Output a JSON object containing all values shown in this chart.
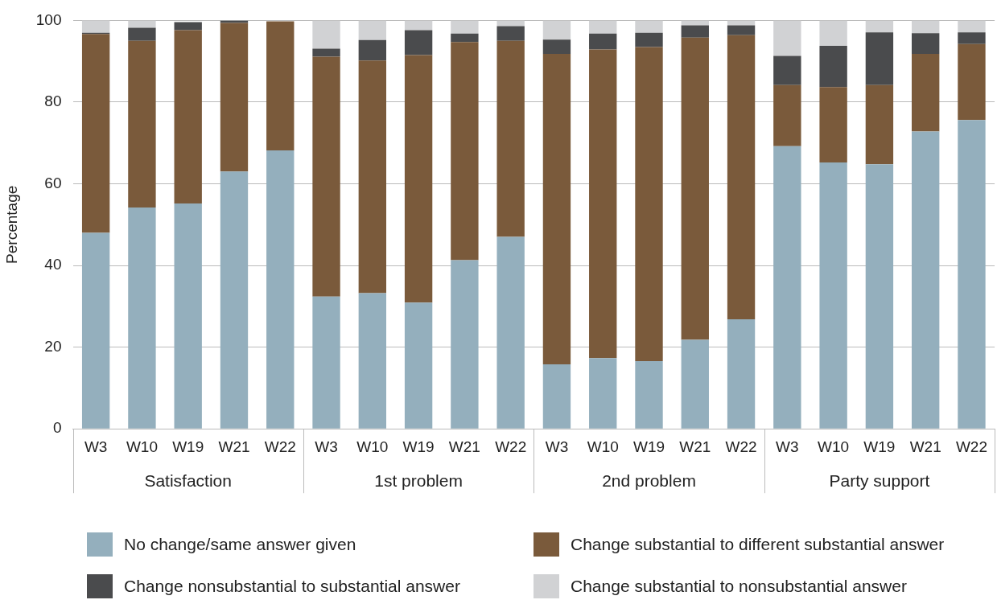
{
  "chart_data": {
    "type": "bar",
    "stacked": true,
    "ylabel": "Percentage",
    "ylim": [
      0,
      100
    ],
    "yticks": [
      0,
      20,
      40,
      60,
      80,
      100
    ],
    "grid": "y",
    "legend": "bottom",
    "categories": [
      "W3",
      "W10",
      "W19",
      "W21",
      "W22",
      "W3",
      "W10",
      "W19",
      "W21",
      "W22",
      "W3",
      "W10",
      "W19",
      "W21",
      "W22",
      "W3",
      "W10",
      "W19",
      "W21",
      "W22"
    ],
    "annotations": [
      "Satisfaction",
      "1st problem",
      "2nd problem",
      "Party support"
    ],
    "series": [
      {
        "name": "No change/same answer given",
        "color": "#94afbd",
        "values": [
          48,
          54.2,
          55.2,
          63,
          68.2,
          32.4,
          33.2,
          30.9,
          41.3,
          47,
          15.8,
          17.3,
          16.6,
          21.8,
          26.8,
          69.2,
          65.2,
          64.8,
          72.8,
          75.6
        ]
      },
      {
        "name": "Change substantial to different substantial answer",
        "color": "#7a5a3b",
        "values": [
          48.7,
          40.8,
          42.4,
          36.4,
          31.6,
          58.7,
          57,
          60.6,
          53.4,
          48,
          76,
          75.6,
          76.9,
          74,
          69.6,
          15,
          18.5,
          19.4,
          19,
          18.6
        ]
      },
      {
        "name": "Change nonsubstantial to substantial answer",
        "color": "#4a4b4d",
        "values": [
          0.3,
          3.2,
          2,
          0.6,
          null,
          2,
          5,
          6.1,
          2.1,
          3.6,
          3.5,
          3.9,
          3.5,
          3,
          2.4,
          7.1,
          10.1,
          12.9,
          5.1,
          2.9
        ]
      },
      {
        "name": "Change substantial to nonsubstantial answer",
        "color": "#d1d2d4",
        "values": [
          3.1,
          1.8,
          null,
          0,
          0,
          6.9,
          4.8,
          2.4,
          3.2,
          1.4,
          4.7,
          3.2,
          3,
          1.2,
          1.2,
          8.7,
          6.2,
          2.9,
          3.1,
          2.9
        ]
      }
    ]
  }
}
